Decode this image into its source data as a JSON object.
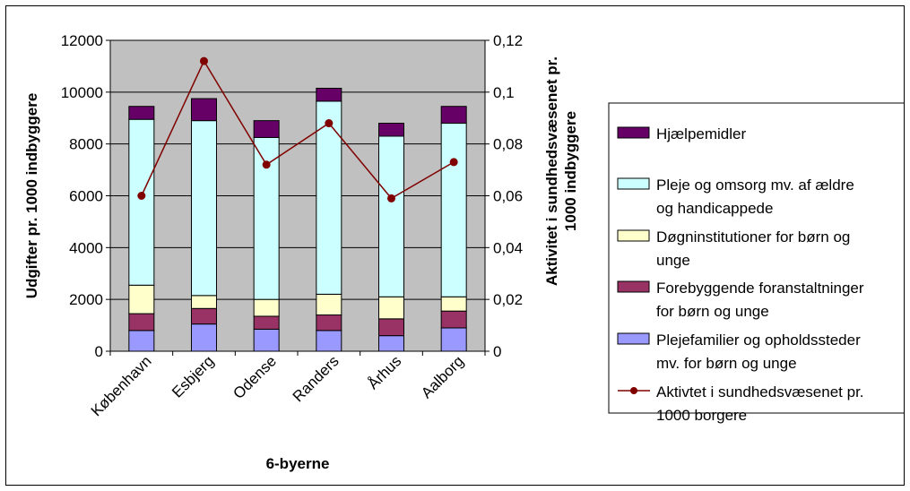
{
  "chart_data": {
    "type": "bar",
    "stacked": true,
    "categories": [
      "København",
      "Esbjerg",
      "Odense",
      "Randers",
      "Århus",
      "Aalborg"
    ],
    "series": [
      {
        "name": "Plejefamilier og opholdssteder mv. for børn og unge",
        "color": "#9999ff",
        "values": [
          800,
          1050,
          850,
          800,
          600,
          900
        ]
      },
      {
        "name": "Forebyggende foranstaltninger for børn og unge",
        "color": "#993366",
        "values": [
          650,
          600,
          500,
          600,
          650,
          650
        ]
      },
      {
        "name": "Døgninstitutioner for børn og unge",
        "color": "#ffffcc",
        "values": [
          1100,
          500,
          650,
          800,
          850,
          550
        ]
      },
      {
        "name": "Pleje og omsorg mv. af ældre og handicappede",
        "color": "#ccffff",
        "values": [
          6400,
          6750,
          6250,
          7450,
          6200,
          6700
        ]
      },
      {
        "name": "Hjælpemidler",
        "color": "#660066",
        "values": [
          500,
          850,
          650,
          500,
          500,
          650
        ]
      }
    ],
    "line_series": {
      "name": "Aktivtet i sundhedsvæsenet pr. 1000 borgere",
      "color": "#800000",
      "values": [
        0.06,
        0.112,
        0.072,
        0.088,
        0.059,
        0.073
      ]
    },
    "y_left": {
      "label": "Udgifter pr. 1000 indbyggere",
      "ylim": [
        0,
        12000
      ],
      "ticks": [
        "0",
        "2000",
        "4000",
        "6000",
        "8000",
        "10000",
        "12000"
      ]
    },
    "y_right": {
      "label": "Aktivitet i sundhedsvæsenet pr. 1000 indbyggere",
      "label_lines": [
        "Aktivitet i sundhedsvæsenet pr.",
        "1000 indbyggere"
      ],
      "ylim": [
        0,
        0.12
      ],
      "ticks": [
        "0",
        "0,02",
        "0,04",
        "0,06",
        "0,08",
        "0,1",
        "0,12"
      ]
    },
    "xlabel": "6-byerne",
    "plot_background": "#c0c0c0",
    "legend_placement": "right",
    "legend_order": [
      {
        "kind": "bar",
        "lines": [
          "Hjælpemidler"
        ],
        "color": "#660066"
      },
      {
        "kind": "bar",
        "lines": [
          "Pleje og omsorg mv. af ældre",
          "og handicappede"
        ],
        "color": "#ccffff"
      },
      {
        "kind": "bar",
        "lines": [
          "Døgninstitutioner for børn og",
          "unge"
        ],
        "color": "#ffffcc"
      },
      {
        "kind": "bar",
        "lines": [
          "Forebyggende foranstaltninger",
          "for børn og unge"
        ],
        "color": "#993366"
      },
      {
        "kind": "bar",
        "lines": [
          "Plejefamilier og opholdssteder",
          "mv. for børn og unge"
        ],
        "color": "#9999ff"
      },
      {
        "kind": "line",
        "lines": [
          "Aktivtet i sundhedsvæsenet pr.",
          "1000 borgere"
        ],
        "color": "#800000"
      }
    ]
  }
}
